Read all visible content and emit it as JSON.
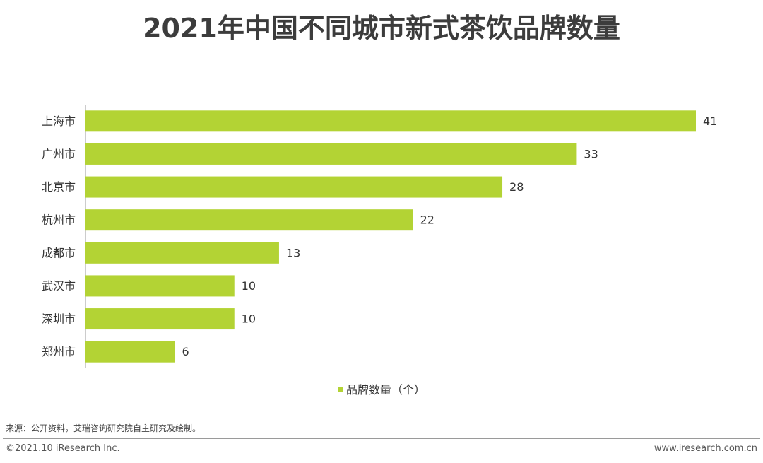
{
  "title": "2021年中国不同城市新式茶饮品牌数量",
  "legend": {
    "label": "品牌数量（个）"
  },
  "source": "来源：公开资料，艾瑞咨询研究院自主研究及绘制。",
  "footer": {
    "copyright": "©2021.10 iResearch Inc.",
    "website": "www.iresearch.com.cn"
  },
  "colors": {
    "bar": "#b3d334",
    "axis": "#9a9a9a"
  },
  "chart_data": {
    "type": "bar",
    "orientation": "horizontal",
    "title": "2021年中国不同城市新式茶饮品牌数量",
    "xlabel": "",
    "ylabel": "",
    "categories": [
      "上海市",
      "广州市",
      "北京市",
      "杭州市",
      "成都市",
      "武汉市",
      "深圳市",
      "郑州市"
    ],
    "series": [
      {
        "name": "品牌数量（个）",
        "values": [
          41,
          33,
          28,
          22,
          13,
          10,
          10,
          6
        ]
      }
    ],
    "xlim": [
      0,
      41
    ],
    "grid": false,
    "legend_position": "bottom"
  }
}
